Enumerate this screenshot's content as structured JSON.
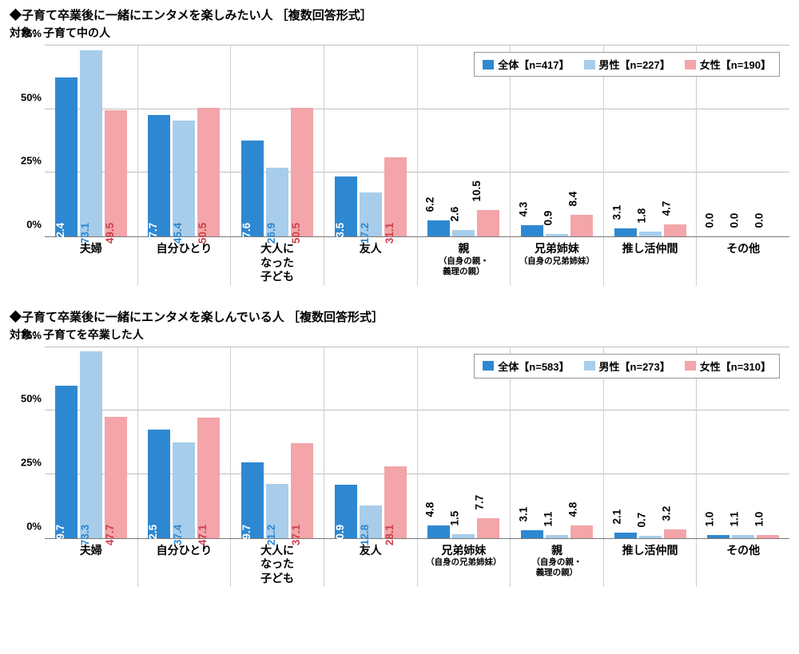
{
  "colors": {
    "series_all": "#2e88d1",
    "series_male": "#a8cdea",
    "series_female": "#f3a5a9",
    "label_all": "#ffffff",
    "label_male": "#2e88d1",
    "label_female": "#cc3f4a",
    "grid": "#bfbfbf",
    "axis": "#787878",
    "text": "#000000"
  },
  "chart1": {
    "title": "◆子育て卒業後に一緒にエンタメを楽しみたい人 ［複数回答形式］",
    "subtitle": "対象：子育て中の人",
    "ylim_max": 75,
    "yticks": [
      0,
      25,
      50,
      75
    ],
    "legend": [
      {
        "swatch": "series_all",
        "label": "全体【n=417】"
      },
      {
        "swatch": "series_male",
        "label": "男性【n=227】"
      },
      {
        "swatch": "series_female",
        "label": "女性【n=190】"
      }
    ],
    "categories": [
      {
        "label": "夫婦",
        "sub": ""
      },
      {
        "label": "自分ひとり",
        "sub": ""
      },
      {
        "label": "大人に\nなった\n子ども",
        "sub": ""
      },
      {
        "label": "友人",
        "sub": ""
      },
      {
        "label": "親",
        "sub": "（自身の親・\n義理の親）"
      },
      {
        "label": "兄弟姉妹",
        "sub": "（自身の兄弟姉妹）"
      },
      {
        "label": "推し活仲間",
        "sub": ""
      },
      {
        "label": "その他",
        "sub": ""
      }
    ],
    "data": [
      {
        "all": 62.4,
        "male": 73.1,
        "female": 49.5
      },
      {
        "all": 47.7,
        "male": 45.4,
        "female": 50.5
      },
      {
        "all": 37.6,
        "male": 26.9,
        "female": 50.5
      },
      {
        "all": 23.5,
        "male": 17.2,
        "female": 31.1
      },
      {
        "all": 6.2,
        "male": 2.6,
        "female": 10.5
      },
      {
        "all": 4.3,
        "male": 0.9,
        "female": 8.4
      },
      {
        "all": 3.1,
        "male": 1.8,
        "female": 4.7
      },
      {
        "all": 0.0,
        "male": 0.0,
        "female": 0.0
      }
    ]
  },
  "chart2": {
    "title": "◆子育て卒業後に一緒にエンタメを楽しんでいる人 ［複数回答形式］",
    "subtitle": "対象：子育てを卒業した人",
    "ylim_max": 75,
    "yticks": [
      0,
      25,
      50,
      75
    ],
    "legend": [
      {
        "swatch": "series_all",
        "label": "全体【n=583】"
      },
      {
        "swatch": "series_male",
        "label": "男性【n=273】"
      },
      {
        "swatch": "series_female",
        "label": "女性【n=310】"
      }
    ],
    "categories": [
      {
        "label": "夫婦",
        "sub": ""
      },
      {
        "label": "自分ひとり",
        "sub": ""
      },
      {
        "label": "大人に\nなった\n子ども",
        "sub": ""
      },
      {
        "label": "友人",
        "sub": ""
      },
      {
        "label": "兄弟姉妹",
        "sub": "（自身の兄弟姉妹）"
      },
      {
        "label": "親",
        "sub": "（自身の親・\n義理の親）"
      },
      {
        "label": "推し活仲間",
        "sub": ""
      },
      {
        "label": "その他",
        "sub": ""
      }
    ],
    "data": [
      {
        "all": 59.7,
        "male": 73.3,
        "female": 47.7
      },
      {
        "all": 42.5,
        "male": 37.4,
        "female": 47.1
      },
      {
        "all": 29.7,
        "male": 21.2,
        "female": 37.1
      },
      {
        "all": 20.9,
        "male": 12.8,
        "female": 28.1
      },
      {
        "all": 4.8,
        "male": 1.5,
        "female": 7.7
      },
      {
        "all": 3.1,
        "male": 1.1,
        "female": 4.8
      },
      {
        "all": 2.1,
        "male": 0.7,
        "female": 3.2
      },
      {
        "all": 1.0,
        "male": 1.1,
        "female": 1.0
      }
    ]
  }
}
